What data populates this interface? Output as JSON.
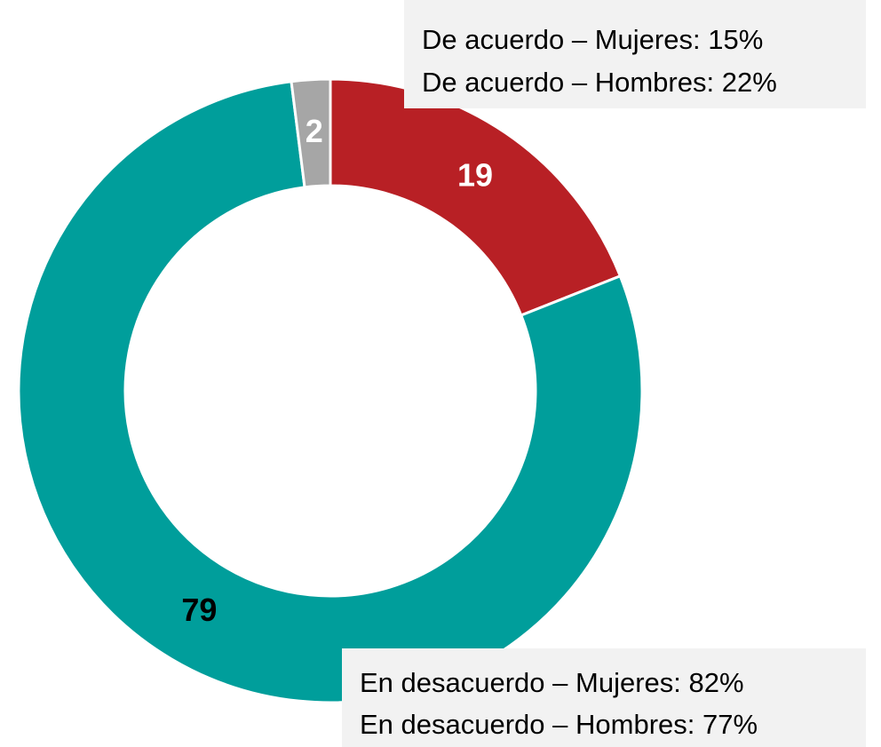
{
  "chart_data": {
    "type": "donut",
    "values": [
      19,
      79,
      2
    ],
    "colors": [
      "#b82025",
      "#009e9b",
      "#a6a6a6"
    ],
    "label_colors": [
      "#ffffff",
      "#000000",
      "#ffffff"
    ],
    "annotations": [
      [
        "De acuerdo – Mujeres: 15%",
        "De acuerdo –  Hombres: 22%"
      ],
      [
        "En desacuerdo – Mujeres: 82%",
        "En desacuerdo –  Hombres: 77%"
      ]
    ]
  }
}
